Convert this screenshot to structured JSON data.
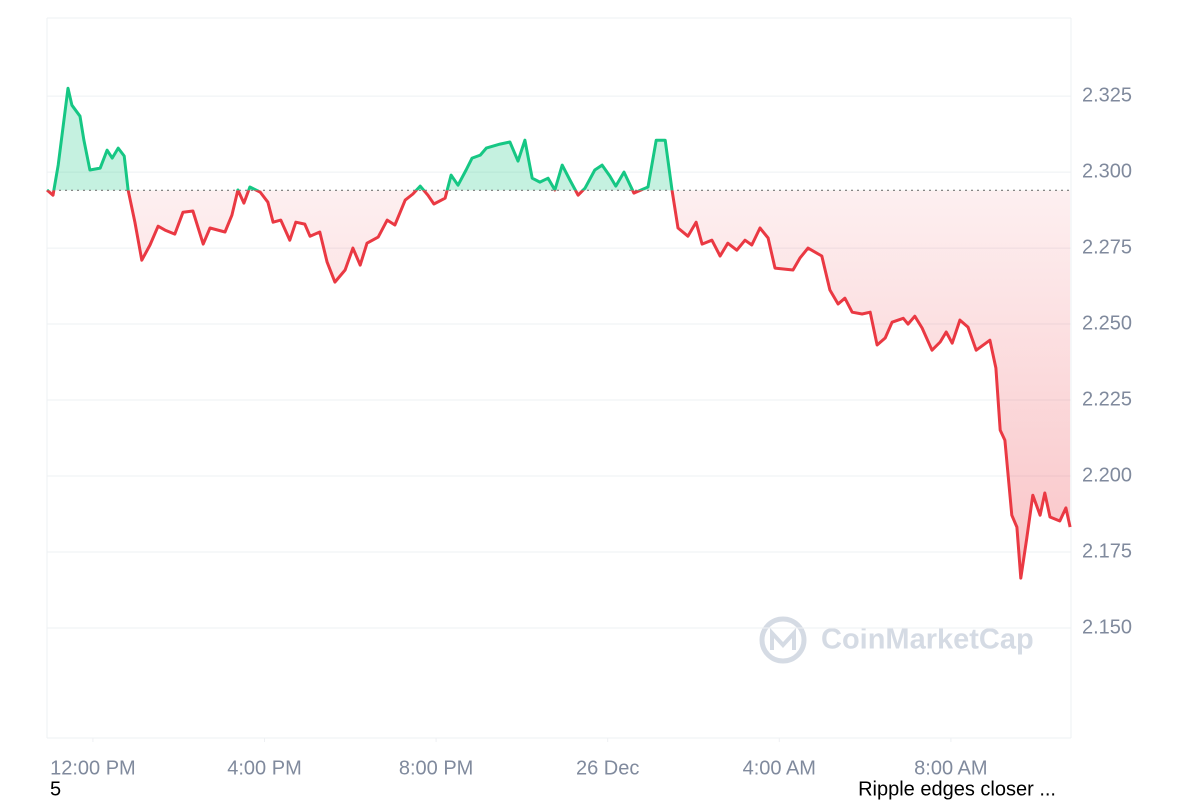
{
  "chart_data": {
    "type": "line",
    "x": [
      10.93,
      11.07,
      11.19,
      11.42,
      11.51,
      11.7,
      11.79,
      11.93,
      12.17,
      12.33,
      12.45,
      12.59,
      12.73,
      12.82,
      12.98,
      13.14,
      13.33,
      13.52,
      13.68,
      13.91,
      14.1,
      14.33,
      14.57,
      14.73,
      15.08,
      15.24,
      15.38,
      15.52,
      15.66,
      15.9,
      16.08,
      16.2,
      16.38,
      16.59,
      16.73,
      16.94,
      17.06,
      17.29,
      17.46,
      17.64,
      17.88,
      18.06,
      18.23,
      18.39,
      18.65,
      18.86,
      19.04,
      19.28,
      19.46,
      19.63,
      19.81,
      19.95,
      20.21,
      20.35,
      20.51,
      20.7,
      20.84,
      21.03,
      21.17,
      21.49,
      21.72,
      21.91,
      22.07,
      22.24,
      22.42,
      22.61,
      22.77,
      22.94,
      23.12,
      23.31,
      23.47,
      23.7,
      23.87,
      24.05,
      24.19,
      24.38,
      24.61,
      24.94,
      25.13,
      25.34,
      25.5,
      25.64,
      25.87,
      26.06,
      26.2,
      26.43,
      26.62,
      26.8,
      27.01,
      27.2,
      27.36,
      27.55,
      27.74,
      27.9,
      28.32,
      28.48,
      28.67,
      28.99,
      29.18,
      29.37,
      29.53,
      29.7,
      29.93,
      30.12,
      30.28,
      30.47,
      30.63,
      30.89,
      31.0,
      31.16,
      31.33,
      31.56,
      31.75,
      31.89,
      32.03,
      32.21,
      32.4,
      32.59,
      32.91,
      33.05,
      33.15,
      33.26,
      33.42,
      33.54,
      33.63,
      33.77,
      33.91,
      34.08,
      34.19,
      34.31,
      34.54,
      34.68,
      34.78
    ],
    "values": [
      2.2941,
      2.2924,
      2.3023,
      2.3276,
      2.322,
      2.3184,
      2.3105,
      2.3007,
      2.3013,
      2.3072,
      2.3046,
      2.3079,
      2.3053,
      2.2941,
      2.2835,
      2.271,
      2.276,
      2.2822,
      2.2809,
      2.2796,
      2.2868,
      2.2872,
      2.2763,
      2.2816,
      2.2803,
      2.2858,
      2.2941,
      2.2898,
      2.2951,
      2.2934,
      2.2901,
      2.2835,
      2.2842,
      2.2776,
      2.2835,
      2.2829,
      2.2789,
      2.2803,
      2.2704,
      2.2638,
      2.2678,
      2.275,
      2.2694,
      2.2766,
      2.2786,
      2.2842,
      2.2826,
      2.2908,
      2.2928,
      2.2954,
      2.2924,
      2.2895,
      2.2914,
      2.299,
      2.2957,
      2.3007,
      2.3046,
      2.3056,
      2.3079,
      2.3092,
      2.3099,
      2.3036,
      2.3105,
      2.298,
      2.2967,
      2.298,
      2.2941,
      2.3023,
      2.2974,
      2.2924,
      2.2947,
      2.3007,
      2.3023,
      2.2987,
      2.2954,
      2.3,
      2.2931,
      2.2951,
      2.3105,
      2.3105,
      2.2941,
      2.2816,
      2.2789,
      2.2835,
      2.2763,
      2.2776,
      2.2724,
      2.2766,
      2.2743,
      2.2776,
      2.276,
      2.2816,
      2.2783,
      2.2684,
      2.2678,
      2.2717,
      2.275,
      2.2724,
      2.2612,
      2.2566,
      2.2585,
      2.2539,
      2.2533,
      2.2539,
      2.2431,
      2.2454,
      2.2506,
      2.2519,
      2.25,
      2.2526,
      2.2487,
      2.2414,
      2.2441,
      2.2474,
      2.2437,
      2.2513,
      2.249,
      2.2414,
      2.2447,
      2.2355,
      2.2151,
      2.2118,
      2.1871,
      2.1832,
      2.1664,
      2.1796,
      2.1937,
      2.1871,
      2.1944,
      2.1865,
      2.1852,
      2.1895,
      2.1832
    ],
    "baseline": 2.294,
    "color_up": "#16c784",
    "color_down": "#ea3943",
    "xlim": [
      10.93,
      34.8
    ],
    "xticks": [
      {
        "value": 12,
        "label": "12:00 PM"
      },
      {
        "value": 16,
        "label": "4:00 PM"
      },
      {
        "value": 20,
        "label": "8:00 PM"
      },
      {
        "value": 24,
        "label": "26 Dec"
      },
      {
        "value": 28,
        "label": "4:00 AM"
      },
      {
        "value": 32,
        "label": "8:00 AM"
      }
    ],
    "ylim": [
      2.1138,
      2.3507
    ],
    "yticks": [
      {
        "value": 2.15,
        "label": "2.150"
      },
      2.175,
      {
        "value": 2.2,
        "label": "2.200"
      },
      2.225,
      {
        "value": 2.25,
        "label": "2.250"
      },
      2.275,
      {
        "value": 2.3,
        "label": "2.300"
      },
      2.325
    ],
    "grid": true,
    "watermark": "CoinMarketCap"
  },
  "footer": {
    "left": "5",
    "right": "Ripple edges closer ..."
  }
}
